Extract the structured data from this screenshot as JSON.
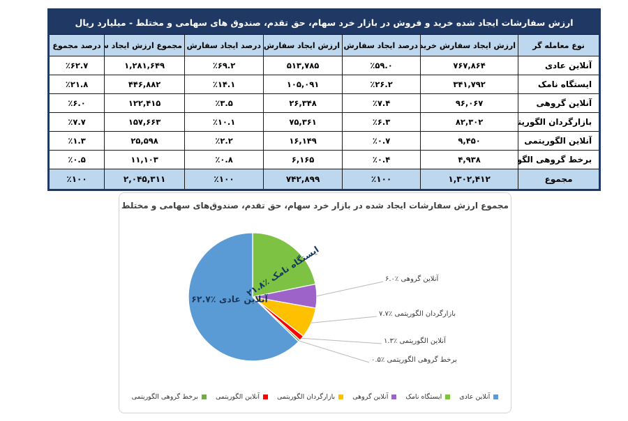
{
  "table": {
    "title": "ارزش سفارشات ایجاد شده خرید و فروش در بازار خرد سهام، حق تقدم، صندوق های سهامی و مختلط - میلیارد ریال",
    "title_bar_color": "#1F3864",
    "band_row_color": "#BDD7EE",
    "columns": [
      "نوع معامله گر",
      "ارزش ایجاد سفارش خرید",
      "درصد ایجاد سفارش خرید",
      "ارزش ایجاد سفارش فروش",
      "درصد ایجاد سفارش فروش",
      "مجموع ارزش ایجاد سفارش",
      "درصد مجموع"
    ],
    "rows": [
      [
        "آنلاین عادی",
        "۷۶۷,۸۶۴",
        "٪۵۹.۰",
        "۵۱۳,۷۸۵",
        "٪۶۹.۲",
        "۱,۲۸۱,۶۴۹",
        "٪۶۲.۷"
      ],
      [
        "ایستگاه نامک",
        "۳۴۱,۷۹۲",
        "٪۲۶.۲",
        "۱۰۵,۰۹۱",
        "٪۱۴.۱",
        "۴۴۶,۸۸۲",
        "٪۲۱.۸"
      ],
      [
        "آنلاین گروهی",
        "۹۶,۰۶۷",
        "٪۷.۴",
        "۲۶,۳۴۸",
        "٪۳.۵",
        "۱۲۲,۴۱۵",
        "٪۶.۰"
      ],
      [
        "بازارگردان الگوریتمی",
        "۸۲,۳۰۲",
        "٪۶.۳",
        "۷۵,۳۶۱",
        "٪۱۰.۱",
        "۱۵۷,۶۶۳",
        "٪۷.۷"
      ],
      [
        "آنلاین الگوریتمی",
        "۹,۴۵۰",
        "٪۰.۷",
        "۱۶,۱۴۹",
        "٪۲.۲",
        "۲۵,۵۹۸",
        "٪۱.۳"
      ],
      [
        "برخط گروهی الگوریتمی",
        "۴,۹۳۸",
        "٪۰.۴",
        "۶,۱۶۵",
        "٪۰.۸",
        "۱۱,۱۰۳",
        "٪۰.۵"
      ]
    ],
    "total_row": [
      "مجموع",
      "۱,۳۰۲,۴۱۲",
      "٪۱۰۰",
      "۷۴۲,۸۹۹",
      "٪۱۰۰",
      "۲,۰۴۵,۳۱۱",
      "٪۱۰۰"
    ]
  },
  "chart_data": {
    "type": "pie",
    "title": "مجموع ارزش سفارشات ایجاد شده در بازار خرد سهام، حق تقدم، صندوق‌های سهامی و مختلط",
    "start_angle_deg": 0,
    "direction": "clockwise",
    "legend_position": "bottom",
    "slices": [
      {
        "name": "ایستگاه نامک",
        "value": 21.8,
        "color": "#7DC242",
        "inner_label": "ایستگاه نامک ٪۲۱.۸"
      },
      {
        "name": "آنلاین گروهی",
        "value": 6.0,
        "color": "#9E63C9",
        "callout": "آنلاین گروهی ٪۶.۰"
      },
      {
        "name": "بازارگردان الگوریتمی",
        "value": 7.7,
        "color": "#FFC000",
        "callout": "بازارگردان الگوریتمی ٪۷.۷"
      },
      {
        "name": "آنلاین الگوریتمی",
        "value": 1.3,
        "color": "#FF0000",
        "callout": "آنلاین الگوریتمی ٪۱.۳"
      },
      {
        "name": "برخط گروهی الگوریتمی",
        "value": 0.5,
        "color": "#70AD47",
        "callout": "برخط گروهی الگوریتمی ٪۰.۵"
      },
      {
        "name": "آنلاین عادی",
        "value": 62.7,
        "color": "#5B9BD5",
        "inner_label": "آنلاین عادی ٪۶۲.۷"
      }
    ],
    "legend": [
      {
        "label": "آنلاین عادی",
        "color": "#5B9BD5"
      },
      {
        "label": "ایستگاه نامک",
        "color": "#7DC242"
      },
      {
        "label": "آنلاین گروهی",
        "color": "#9E63C9"
      },
      {
        "label": "بازارگردان الگوریتمی",
        "color": "#FFC000"
      },
      {
        "label": "آنلاین الگوریتمی",
        "color": "#FF0000"
      },
      {
        "label": "برخط گروهی الگوریتمی",
        "color": "#70AD47"
      }
    ]
  }
}
